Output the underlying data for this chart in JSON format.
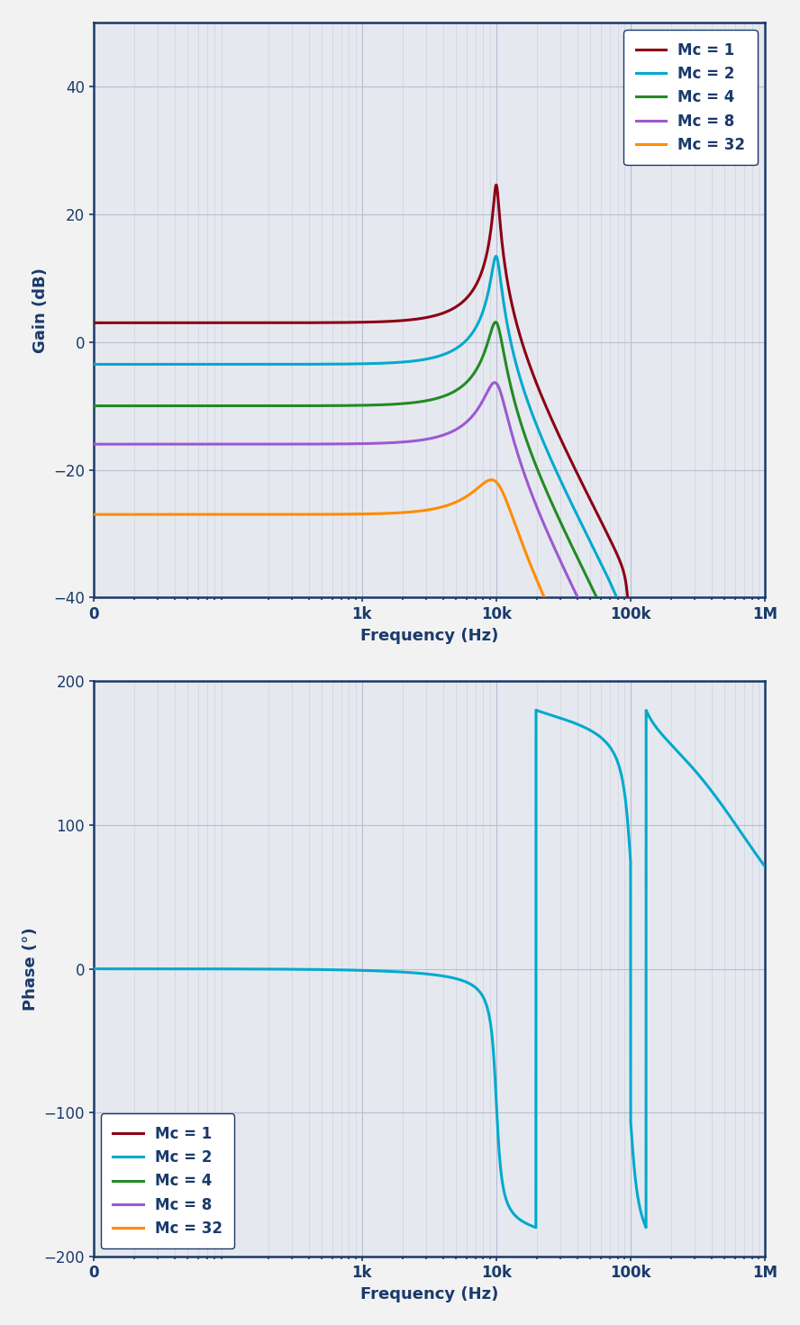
{
  "fig_bg": "#f2f2f2",
  "plot_bg": "#e6e8f0",
  "gain_ylim": [
    -40,
    50
  ],
  "gain_yticks": [
    -40,
    -20,
    0,
    20,
    40
  ],
  "phase_ylim": [
    -200,
    200
  ],
  "phase_yticks": [
    -200,
    -100,
    0,
    100,
    200
  ],
  "xlim_min": 10,
  "xlim_max": 1000000,
  "xlabel": "Frequency (Hz)",
  "gain_ylabel": "Gain (dB)",
  "phase_ylabel": "Phase (°)",
  "xtick_labels": [
    "0",
    "1k",
    "10k",
    "100k",
    "1M"
  ],
  "xtick_positions": [
    10,
    1000,
    10000,
    100000,
    1000000
  ],
  "colors": {
    "mc1": "#8B0014",
    "mc2": "#00AACC",
    "mc4": "#228B22",
    "mc8": "#9B59D0",
    "mc32": "#FF8C00"
  },
  "legend_labels": [
    "Mc = 1",
    "Mc = 2",
    "Mc = 4",
    "Mc = 8",
    "Mc = 32"
  ],
  "axis_color": "#1a3a6b",
  "grid_color_major": "#b8bdd0",
  "grid_color_minor": "#c8cdd8",
  "label_color": "#1a3a6b",
  "line_width": 2.2,
  "f0": 10000.0,
  "f_sw": 100000.0,
  "dc_gains_db": {
    "1": 3.0,
    "2": -3.5,
    "4": -10.0,
    "8": -16.0,
    "32": -27.0
  },
  "Q_peak": {
    "1": 12.0,
    "2": 7.0,
    "4": 4.5,
    "8": 3.0,
    "32": 1.8
  },
  "Q_sw": {
    "1": 8.0,
    "2": 5.0,
    "4": 3.0,
    "8": 2.0,
    "32": 1.2
  }
}
